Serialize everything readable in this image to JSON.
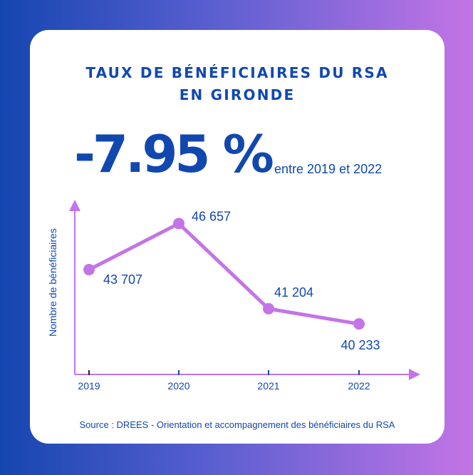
{
  "title_line1": "TAUX DE BÉNÉFICIAIRES DU RSA",
  "title_line2": "EN GIRONDE",
  "kpi": {
    "value": "-7.95 %",
    "subtitle": "entre 2019 et 2022"
  },
  "source": "Source : DREES - Orientation et accompagnement des bénéficiaires du RSA",
  "colors": {
    "primary": "#1148b0",
    "accent": "#c474e6"
  },
  "chart_data": {
    "type": "line",
    "categories": [
      "2019",
      "2020",
      "2021",
      "2022"
    ],
    "values": [
      43707,
      46657,
      41204,
      40233
    ],
    "data_labels": [
      "43 707",
      "46 657",
      "41 204",
      "40 233"
    ],
    "ylabel": "Nombre de bénéficiaires",
    "xlabel": "",
    "ylim": [
      37000,
      48000
    ],
    "grid": false,
    "legend": "none"
  }
}
